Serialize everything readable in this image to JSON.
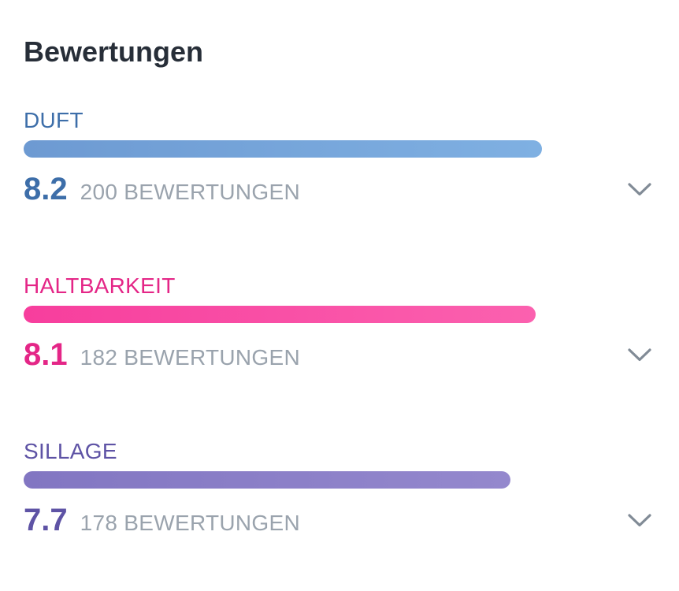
{
  "header": {
    "title": "Bewertungen"
  },
  "ratings": {
    "max_score": 10,
    "items": [
      {
        "label": "DUFT",
        "score": "8.2",
        "score_value": 8.2,
        "count": 200,
        "count_label": "200 BEWERTUNGEN",
        "accent_color": "#3d6ea9",
        "bar_gradient_from": "#6d9ad2",
        "bar_gradient_to": "#7fb0e2",
        "expand_icon": "chevron-down-icon"
      },
      {
        "label": "HALTBARKEIT",
        "score": "8.1",
        "score_value": 8.1,
        "count": 182,
        "count_label": "182 BEWERTUNGEN",
        "accent_color": "#e42687",
        "bar_gradient_from": "#f73e9d",
        "bar_gradient_to": "#fb61af",
        "expand_icon": "chevron-down-icon"
      },
      {
        "label": "SILLAGE",
        "score": "7.7",
        "score_value": 7.7,
        "count": 178,
        "count_label": "178 BEWERTUNGEN",
        "accent_color": "#5e53a5",
        "bar_gradient_from": "#8276c2",
        "bar_gradient_to": "#9488cd",
        "expand_icon": "chevron-down-icon"
      }
    ]
  },
  "colors": {
    "bg": "#ffffff",
    "title": "#272e38",
    "count": "#9aa3ad",
    "chevron": "#818b96"
  },
  "chart_data": {
    "type": "bar",
    "orientation": "horizontal",
    "title": "Bewertungen",
    "categories": [
      "DUFT",
      "HALTBARKEIT",
      "SILLAGE"
    ],
    "values": [
      8.2,
      8.1,
      7.7
    ],
    "value_range": [
      0,
      10
    ],
    "counts": [
      200,
      182,
      178
    ],
    "bar_colors": [
      "#74a3d8",
      "#f94da5",
      "#8a7dc7"
    ],
    "grid": false,
    "legend": false
  }
}
